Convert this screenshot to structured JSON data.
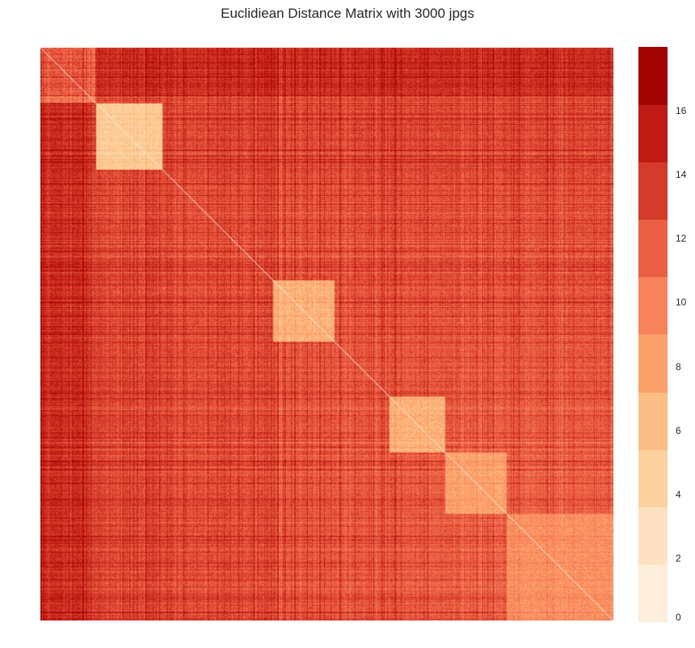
{
  "chart_data": {
    "type": "heatmap",
    "title": "Euclidiean Distance Matrix with 3000 jpgs",
    "xlabel": "",
    "ylabel": "",
    "n_items": 3000,
    "value_range": [
      0,
      18
    ],
    "colormap": "OrRd",
    "diagonal_value": 0,
    "typical_off_block_distance": [
      10,
      14
    ],
    "low_distance_blocks": [
      {
        "start_index": 290,
        "end_index": 640,
        "typical_distance": 5
      },
      {
        "start_index": 1220,
        "end_index": 1540,
        "typical_distance": 7
      },
      {
        "start_index": 1830,
        "end_index": 2120,
        "typical_distance": 7
      },
      {
        "start_index": 2120,
        "end_index": 2440,
        "typical_distance": 8
      },
      {
        "start_index": 2440,
        "end_index": 3000,
        "typical_distance": 9
      }
    ],
    "colorbar": {
      "levels": [
        0,
        1.8,
        3.6,
        5.4,
        7.2,
        9.0,
        10.8,
        12.6,
        14.4,
        16.2,
        18.0
      ],
      "colors": [
        "#fdeedb",
        "#fee1c0",
        "#fdd29e",
        "#fcbe85",
        "#fca06a",
        "#f8825a",
        "#eb6044",
        "#d53b2a",
        "#bf1b14",
        "#a50500"
      ],
      "tick_labels": [
        "0",
        "2",
        "4",
        "6",
        "8",
        "10",
        "12",
        "14",
        "16"
      ],
      "tick_values": [
        0,
        2,
        4,
        6,
        8,
        10,
        12,
        14,
        16
      ]
    }
  }
}
